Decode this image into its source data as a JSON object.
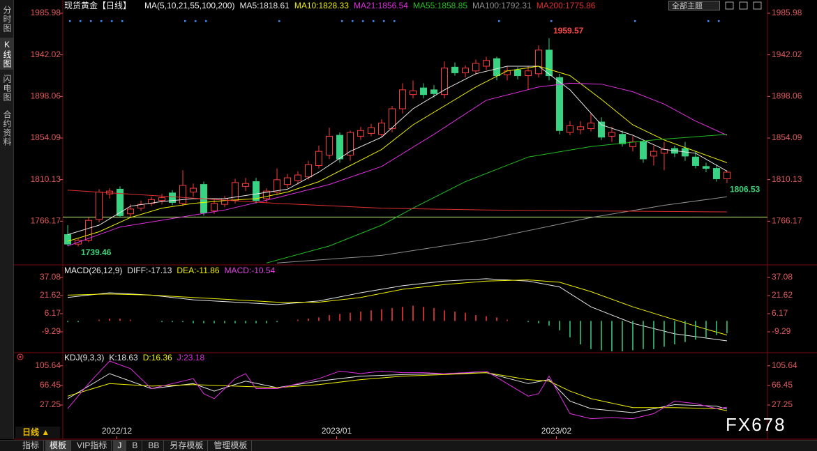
{
  "chart_data": [
    {
      "type": "candlestick",
      "title": "现货黄金【日线】",
      "indicator_title": "MA(5,10,21,55,100,200)",
      "up_color": "#ff3c3c",
      "down_color": "#38d383",
      "xlim": [
        -0.47,
        66.87
      ],
      "ylim": [
        1720,
        1986.7
      ],
      "yticks": [
        1985.98,
        1942.02,
        1898.06,
        1854.09,
        1810.13,
        1766.17
      ],
      "reference_line": {
        "value": 1770.6,
        "color": "#c8f080"
      },
      "candles": {
        "open": [
          1752,
          1742,
          1746,
          1768,
          1795,
          1800,
          1774,
          1780,
          1785,
          1788,
          1796,
          1785,
          1797,
          1805,
          1777,
          1784,
          1788,
          1803,
          1808,
          1790,
          1797,
          1805,
          1809,
          1813,
          1825,
          1836,
          1857,
          1836,
          1856,
          1859,
          1858,
          1864,
          1885,
          1900,
          1907,
          1905,
          1900,
          1929,
          1923,
          1925,
          1930,
          1938,
          1921,
          1926,
          1920,
          1922,
          1947,
          1918,
          1860,
          1863,
          1864,
          1871,
          1856,
          1858,
          1845,
          1850,
          1835,
          1838,
          1843,
          1843,
          1834,
          1824,
          1822,
          1811
        ],
        "high": [
          1762,
          1748,
          1770,
          1800,
          1801,
          1803,
          1784,
          1788,
          1792,
          1795,
          1799,
          1820,
          1806,
          1808,
          1789,
          1793,
          1811,
          1812,
          1812,
          1801,
          1822,
          1816,
          1819,
          1830,
          1846,
          1865,
          1860,
          1862,
          1866,
          1869,
          1874,
          1888,
          1912,
          1915,
          1912,
          1910,
          1935,
          1934,
          1931,
          1937,
          1940,
          1940,
          1930,
          1929,
          1930,
          1952,
          1959.57,
          1922,
          1872,
          1872,
          1880,
          1876,
          1866,
          1862,
          1856,
          1852,
          1846,
          1850,
          1846,
          1850,
          1840,
          1828,
          1826,
          1820
        ],
        "low": [
          1740,
          1739.46,
          1744,
          1765,
          1790,
          1770,
          1770,
          1777,
          1782,
          1784,
          1783,
          1782,
          1792,
          1772,
          1774,
          1781,
          1785,
          1798,
          1785,
          1786,
          1794,
          1801,
          1805,
          1810,
          1822,
          1832,
          1828,
          1830,
          1852,
          1856,
          1855,
          1860,
          1880,
          1896,
          1896,
          1897,
          1896,
          1920,
          1918,
          1921,
          1926,
          1915,
          1915,
          1916,
          1905,
          1918,
          1915,
          1858,
          1857,
          1858,
          1861,
          1852,
          1850,
          1845,
          1840,
          1828,
          1825,
          1820,
          1834,
          1830,
          1822,
          1818,
          1808,
          1806.53
        ],
        "close": [
          1742,
          1746,
          1767,
          1797,
          1798,
          1772,
          1779,
          1784,
          1789,
          1791,
          1786,
          1804,
          1801,
          1775,
          1785,
          1790,
          1807,
          1806,
          1788,
          1798,
          1810,
          1812,
          1815,
          1826,
          1840,
          1856,
          1832,
          1860,
          1862,
          1865,
          1870,
          1885,
          1905,
          1904,
          1900,
          1901,
          1928,
          1923,
          1928,
          1933,
          1936,
          1920,
          1925,
          1920,
          1925,
          1947,
          1920,
          1862,
          1867,
          1866,
          1870,
          1855,
          1860,
          1848,
          1850,
          1832,
          1840,
          1842,
          1838,
          1835,
          1825,
          1822,
          1811,
          1818
        ]
      },
      "series": [
        {
          "name": "MA5:1818.61",
          "color": "#e8e8e8",
          "x": [
            0,
            3,
            6,
            9,
            12,
            15,
            18,
            21,
            24,
            27,
            30,
            33,
            36,
            39,
            42,
            45,
            48,
            51,
            54,
            57,
            60,
            63
          ],
          "values": [
            1752,
            1762,
            1782,
            1787,
            1790,
            1790,
            1795,
            1800,
            1818,
            1840,
            1855,
            1885,
            1905,
            1922,
            1930,
            1930,
            1905,
            1868,
            1857,
            1842,
            1838,
            1819
          ]
        },
        {
          "name": "MA10:1828.33",
          "color": "#f0f000",
          "x": [
            0,
            3,
            6,
            9,
            12,
            15,
            18,
            21,
            24,
            27,
            30,
            33,
            36,
            39,
            42,
            45,
            48,
            51,
            54,
            57,
            60,
            63
          ],
          "values": [
            1745,
            1755,
            1770,
            1780,
            1785,
            1788,
            1790,
            1797,
            1808,
            1825,
            1842,
            1868,
            1888,
            1908,
            1925,
            1930,
            1920,
            1895,
            1868,
            1852,
            1840,
            1828
          ]
        },
        {
          "name": "MA21:1856.54",
          "color": "#e030e0",
          "x": [
            0,
            5,
            10,
            15,
            20,
            25,
            30,
            35,
            40,
            45,
            48,
            51,
            54,
            57,
            60,
            63
          ],
          "values": [
            1740,
            1760,
            1769,
            1778,
            1791,
            1805,
            1824,
            1858,
            1894,
            1908,
            1912,
            1911,
            1903,
            1890,
            1872,
            1857
          ]
        },
        {
          "name": "MA55:1858.85",
          "color": "#20c020",
          "x": [
            19,
            25,
            30,
            33,
            38,
            44,
            50,
            56,
            63
          ],
          "values": [
            1722,
            1740,
            1762,
            1780,
            1808,
            1834,
            1845,
            1852,
            1858
          ]
        },
        {
          "name": "MA100:1792.31",
          "color": "#909090",
          "x": [
            20,
            30,
            40,
            50,
            57,
            63
          ],
          "values": [
            1722,
            1730,
            1747,
            1770,
            1783,
            1792
          ]
        },
        {
          "name": "MA200:1775.86",
          "color": "#e03030",
          "x": [
            0,
            10,
            20,
            30,
            40,
            50,
            63
          ],
          "values": [
            1799,
            1792,
            1785,
            1780,
            1778,
            1777,
            1776
          ]
        }
      ]
    },
    {
      "type": "line",
      "title": "MACD(26,12,9)",
      "xlim": [
        -0.47,
        66.87
      ],
      "ylim": [
        -27.1,
        47.8
      ],
      "yticks": [
        37.08,
        21.62,
        6.17,
        -9.29
      ],
      "series": [
        {
          "name": "DIFF:-17.13",
          "color": "#e8e8e8",
          "x": [
            0,
            4,
            8,
            12,
            16,
            20,
            24,
            28,
            32,
            36,
            40,
            44,
            47,
            50,
            54,
            58,
            63
          ],
          "values": [
            20,
            24,
            22,
            18,
            16,
            14,
            17,
            24,
            30,
            34,
            36,
            34,
            29,
            12,
            -2,
            -11,
            -17
          ]
        },
        {
          "name": "DEA:-11.86",
          "color": "#f0f000",
          "x": [
            0,
            4,
            8,
            12,
            16,
            20,
            24,
            28,
            32,
            36,
            40,
            44,
            47,
            50,
            54,
            58,
            61,
            63
          ],
          "values": [
            22,
            23,
            22,
            20,
            18,
            16,
            16,
            20,
            27,
            31,
            34,
            35,
            33,
            25,
            12,
            1,
            -7,
            -12
          ]
        },
        {
          "name": "MACD:-10.54",
          "type": "bar",
          "color": "#e040e0",
          "up_color": "#ff3c3c",
          "down_color": "#38d383",
          "values": [
            -1,
            -1,
            0,
            1,
            2,
            2,
            1,
            0,
            0,
            -1,
            -1,
            -1,
            -2,
            -2,
            -2,
            -2,
            -2,
            -2,
            -2,
            -2,
            -1,
            0,
            1,
            2,
            3,
            5,
            6,
            7,
            8,
            9,
            10,
            11,
            12,
            13,
            12,
            11,
            9,
            8,
            7,
            5,
            4,
            3,
            1,
            0,
            -1,
            -2,
            -4,
            -8,
            -14,
            -20,
            -24,
            -25,
            -26,
            -26,
            -25,
            -24,
            -24,
            -22,
            -20,
            -18,
            -16,
            -14,
            -12,
            -10.54
          ]
        }
      ]
    },
    {
      "type": "line",
      "title": "KDJ(9,3,3)",
      "xlim": [
        -0.47,
        66.87
      ],
      "ylim": [
        -41,
        129
      ],
      "yticks": [
        105.64,
        66.45,
        27.25
      ],
      "xticks": [
        {
          "value": 4.7,
          "label": "2022/12"
        },
        {
          "value": 25.7,
          "label": "2023/01"
        },
        {
          "value": 46.7,
          "label": "2023/02"
        }
      ],
      "series": [
        {
          "name": "K:18.63",
          "color": "#e8e8e8",
          "x": [
            0,
            4,
            8,
            12,
            14,
            17,
            20,
            24,
            28,
            32,
            36,
            40,
            44,
            46,
            48,
            50,
            54,
            58,
            62,
            63
          ],
          "values": [
            40,
            90,
            60,
            70,
            55,
            75,
            62,
            75,
            85,
            88,
            90,
            92,
            70,
            78,
            35,
            20,
            12,
            28,
            25,
            19
          ]
        },
        {
          "name": "D:16.36",
          "color": "#f0f000",
          "x": [
            0,
            4,
            8,
            12,
            16,
            20,
            24,
            28,
            32,
            36,
            40,
            44,
            46,
            48,
            50,
            54,
            58,
            62,
            63
          ],
          "values": [
            45,
            70,
            65,
            68,
            65,
            62,
            68,
            78,
            85,
            88,
            92,
            78,
            75,
            55,
            40,
            22,
            22,
            20,
            16
          ]
        },
        {
          "name": "J:23.18",
          "color": "#e030e0",
          "x": [
            0,
            2,
            4,
            6,
            8,
            10,
            12,
            13,
            14,
            16,
            17,
            18,
            20,
            22,
            24,
            26,
            28,
            30,
            32,
            34,
            36,
            38,
            40,
            42,
            44,
            45,
            46,
            48,
            50,
            52,
            54,
            56,
            58,
            60,
            62,
            63
          ],
          "values": [
            20,
            70,
            115,
            100,
            60,
            70,
            80,
            50,
            40,
            80,
            90,
            60,
            60,
            70,
            80,
            95,
            90,
            95,
            92,
            92,
            90,
            92,
            95,
            70,
            45,
            50,
            85,
            10,
            0,
            2,
            0,
            10,
            35,
            30,
            20,
            23
          ]
        }
      ]
    }
  ],
  "ui": {
    "sidebar": [
      "分时图",
      "K线图",
      "闪电图",
      "合约资料"
    ],
    "theme_button": "全部主题",
    "period": "日线 ▲",
    "tabs": [
      "指标",
      "模板",
      "VIP指标",
      "J",
      "B",
      "BB",
      "另存模板",
      "管理模板"
    ],
    "watermark": "FX678"
  }
}
